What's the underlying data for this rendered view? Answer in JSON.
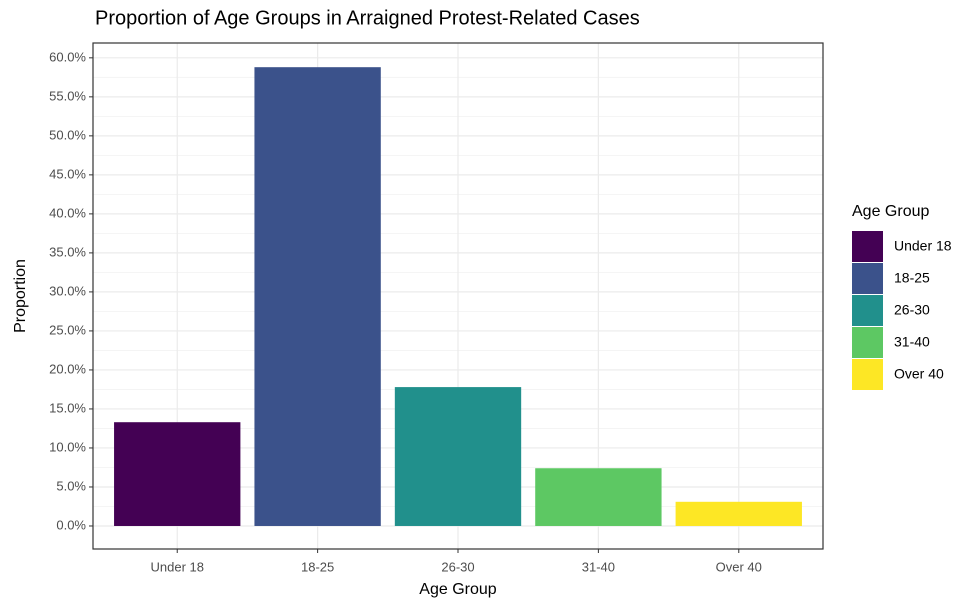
{
  "chart_data": {
    "type": "bar",
    "title": "Proportion of Age Groups in Arraigned Protest-Related Cases",
    "x_label": "Age Group",
    "y_label": "Proportion",
    "legend_title": "Age Group",
    "legend": "right",
    "categories": [
      "Under 18",
      "18-25",
      "26-30",
      "31-40",
      "Over 40"
    ],
    "values": [
      13.3,
      58.8,
      17.8,
      7.4,
      3.1
    ],
    "colors": [
      "#440154",
      "#3b528b",
      "#21908c",
      "#5dc863",
      "#fde725"
    ],
    "ylim": [
      -2.95,
      61.9
    ],
    "yticks": [
      {
        "value": 0,
        "label": "0.0%"
      },
      {
        "value": 5,
        "label": "5.0%"
      },
      {
        "value": 10,
        "label": "10.0%"
      },
      {
        "value": 15,
        "label": "15.0%"
      },
      {
        "value": 20,
        "label": "20.0%"
      },
      {
        "value": 25,
        "label": "25.0%"
      },
      {
        "value": 30,
        "label": "30.0%"
      },
      {
        "value": 35,
        "label": "35.0%"
      },
      {
        "value": 40,
        "label": "40.0%"
      },
      {
        "value": 45,
        "label": "45.0%"
      },
      {
        "value": 50,
        "label": "50.0%"
      },
      {
        "value": 55,
        "label": "55.0%"
      },
      {
        "value": 60,
        "label": "60.0%"
      }
    ],
    "grid": true
  }
}
